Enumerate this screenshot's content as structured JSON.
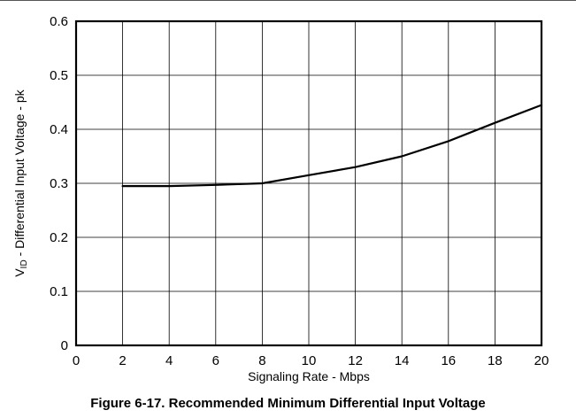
{
  "caption": "Figure 6-17. Recommended Minimum Differential Input Voltage",
  "chart_data": {
    "type": "line",
    "title": "",
    "xlabel": "Signaling Rate - Mbps",
    "ylabel": {
      "prefix": "V",
      "subscript": "ID",
      "suffix": " - Differential Input Voltage - pk"
    },
    "xlim": [
      0,
      20
    ],
    "ylim": [
      0,
      0.6
    ],
    "xticks": [
      "0",
      "2",
      "4",
      "6",
      "8",
      "10",
      "12",
      "14",
      "16",
      "18",
      "20"
    ],
    "yticks": [
      "0",
      "0.1",
      "0.2",
      "0.3",
      "0.4",
      "0.5",
      "0.6"
    ],
    "grid": true,
    "legend": "none",
    "series": [
      {
        "x": [
          2,
          4,
          6,
          8,
          10,
          12,
          14,
          16,
          18,
          20
        ],
        "values": [
          0.295,
          0.295,
          0.297,
          0.3,
          0.315,
          0.33,
          0.35,
          0.378,
          0.412,
          0.445
        ]
      }
    ],
    "colors": {
      "line": "#000000",
      "grid": "#000000",
      "frame": "#000000"
    }
  }
}
